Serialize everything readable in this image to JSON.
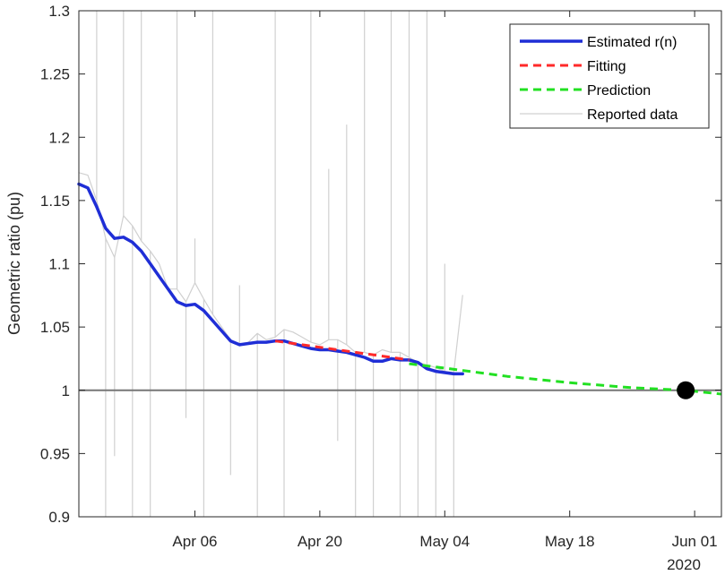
{
  "chart_data": {
    "type": "line",
    "title": "",
    "xlabel": "",
    "ylabel": "Geometric ratio (pu)",
    "year_label": "2020",
    "xlim": [
      "2020-03-24",
      "2020-06-04"
    ],
    "ylim": [
      0.9,
      1.3
    ],
    "x_ticks": [
      {
        "date": "2020-04-06",
        "label": "Apr 06"
      },
      {
        "date": "2020-04-20",
        "label": "Apr 20"
      },
      {
        "date": "2020-05-04",
        "label": "May 04"
      },
      {
        "date": "2020-05-18",
        "label": "May 18"
      },
      {
        "date": "2020-06-01",
        "label": "Jun 01"
      }
    ],
    "y_ticks": [
      {
        "value": 0.9,
        "label": "0.9"
      },
      {
        "value": 0.95,
        "label": "0.95"
      },
      {
        "value": 1.0,
        "label": "1"
      },
      {
        "value": 1.05,
        "label": "1.05"
      },
      {
        "value": 1.1,
        "label": "1.1"
      },
      {
        "value": 1.15,
        "label": "1.15"
      },
      {
        "value": 1.2,
        "label": "1.2"
      },
      {
        "value": 1.25,
        "label": "1.25"
      },
      {
        "value": 1.3,
        "label": "1.3"
      }
    ],
    "grid": false,
    "legend_position": "top-right",
    "reference_line": {
      "y": 1.0,
      "color": "#777777"
    },
    "milestone_point": {
      "x": "2020-05-31",
      "y": 1.0,
      "color": "#000000"
    },
    "series": [
      {
        "name": "Reported data",
        "style": "solid",
        "color": "#d0d0d0",
        "points": [
          [
            "2020-03-24",
            1.172
          ],
          [
            "2020-03-25",
            1.17
          ],
          [
            "2020-03-26",
            1.15
          ],
          [
            "2020-03-27",
            1.12
          ],
          [
            "2020-03-28",
            1.105
          ],
          [
            "2020-03-29",
            1.138
          ],
          [
            "2020-03-30",
            1.13
          ],
          [
            "2020-03-31",
            1.118
          ],
          [
            "2020-04-01",
            1.11
          ],
          [
            "2020-04-02",
            1.1
          ],
          [
            "2020-04-03",
            1.08
          ],
          [
            "2020-04-04",
            1.08
          ],
          [
            "2020-04-05",
            1.07
          ],
          [
            "2020-04-06",
            1.085
          ],
          [
            "2020-04-07",
            1.072
          ],
          [
            "2020-04-08",
            1.06
          ],
          [
            "2020-04-09",
            1.05
          ],
          [
            "2020-04-10",
            1.04
          ],
          [
            "2020-04-11",
            1.035
          ],
          [
            "2020-04-12",
            1.038
          ],
          [
            "2020-04-13",
            1.045
          ],
          [
            "2020-04-14",
            1.04
          ],
          [
            "2020-04-15",
            1.042
          ],
          [
            "2020-04-16",
            1.048
          ],
          [
            "2020-04-17",
            1.046
          ],
          [
            "2020-04-18",
            1.042
          ],
          [
            "2020-04-19",
            1.038
          ],
          [
            "2020-04-20",
            1.036
          ],
          [
            "2020-04-21",
            1.04
          ],
          [
            "2020-04-22",
            1.04
          ],
          [
            "2020-04-23",
            1.036
          ],
          [
            "2020-04-24",
            1.03
          ],
          [
            "2020-04-25",
            1.03
          ],
          [
            "2020-04-26",
            1.028
          ],
          [
            "2020-04-27",
            1.032
          ],
          [
            "2020-04-28",
            1.03
          ],
          [
            "2020-04-29",
            1.03
          ],
          [
            "2020-04-30",
            1.026
          ],
          [
            "2020-05-01",
            1.022
          ],
          [
            "2020-05-02",
            1.02
          ],
          [
            "2020-05-03",
            1.018
          ],
          [
            "2020-05-04",
            1.015
          ],
          [
            "2020-05-05",
            1.014
          ],
          [
            "2020-05-06",
            1.075
          ]
        ],
        "spikes": [
          [
            "2020-03-26",
            1.3
          ],
          [
            "2020-03-27",
            0.9
          ],
          [
            "2020-03-28",
            0.948
          ],
          [
            "2020-03-29",
            1.3
          ],
          [
            "2020-03-30",
            0.9
          ],
          [
            "2020-03-31",
            1.3
          ],
          [
            "2020-04-01",
            0.9
          ],
          [
            "2020-04-04",
            1.3
          ],
          [
            "2020-04-05",
            0.978
          ],
          [
            "2020-04-06",
            1.12
          ],
          [
            "2020-04-07",
            0.9
          ],
          [
            "2020-04-08",
            1.3
          ],
          [
            "2020-04-10",
            0.933
          ],
          [
            "2020-04-11",
            1.083
          ],
          [
            "2020-04-13",
            0.9
          ],
          [
            "2020-04-15",
            1.3
          ],
          [
            "2020-04-16",
            0.9
          ],
          [
            "2020-04-19",
            1.3
          ],
          [
            "2020-04-21",
            1.175
          ],
          [
            "2020-04-22",
            0.96
          ],
          [
            "2020-04-23",
            1.21
          ],
          [
            "2020-04-24",
            0.9
          ],
          [
            "2020-04-25",
            1.3
          ],
          [
            "2020-04-26",
            0.9
          ],
          [
            "2020-04-28",
            1.3
          ],
          [
            "2020-04-29",
            0.9
          ],
          [
            "2020-04-30",
            1.3
          ],
          [
            "2020-05-01",
            0.9
          ],
          [
            "2020-05-02",
            1.3
          ],
          [
            "2020-05-03",
            0.9
          ],
          [
            "2020-05-04",
            1.1
          ],
          [
            "2020-05-05",
            0.9
          ],
          [
            "2020-05-06",
            1.075
          ]
        ]
      },
      {
        "name": "Estimated r(n)",
        "style": "solid",
        "color": "#1f2ed6",
        "points": [
          [
            "2020-03-24",
            1.163
          ],
          [
            "2020-03-25",
            1.16
          ],
          [
            "2020-03-26",
            1.145
          ],
          [
            "2020-03-27",
            1.128
          ],
          [
            "2020-03-28",
            1.12
          ],
          [
            "2020-03-29",
            1.121
          ],
          [
            "2020-03-30",
            1.117
          ],
          [
            "2020-03-31",
            1.11
          ],
          [
            "2020-04-01",
            1.1
          ],
          [
            "2020-04-02",
            1.09
          ],
          [
            "2020-04-03",
            1.08
          ],
          [
            "2020-04-04",
            1.07
          ],
          [
            "2020-04-05",
            1.067
          ],
          [
            "2020-04-06",
            1.068
          ],
          [
            "2020-04-07",
            1.063
          ],
          [
            "2020-04-08",
            1.055
          ],
          [
            "2020-04-09",
            1.047
          ],
          [
            "2020-04-10",
            1.039
          ],
          [
            "2020-04-11",
            1.036
          ],
          [
            "2020-04-12",
            1.037
          ],
          [
            "2020-04-13",
            1.038
          ],
          [
            "2020-04-14",
            1.038
          ],
          [
            "2020-04-15",
            1.039
          ],
          [
            "2020-04-16",
            1.039
          ],
          [
            "2020-04-17",
            1.037
          ],
          [
            "2020-04-18",
            1.035
          ],
          [
            "2020-04-19",
            1.033
          ],
          [
            "2020-04-20",
            1.032
          ],
          [
            "2020-04-21",
            1.032
          ],
          [
            "2020-04-22",
            1.031
          ],
          [
            "2020-04-23",
            1.03
          ],
          [
            "2020-04-24",
            1.028
          ],
          [
            "2020-04-25",
            1.026
          ],
          [
            "2020-04-26",
            1.023
          ],
          [
            "2020-04-27",
            1.023
          ],
          [
            "2020-04-28",
            1.025
          ],
          [
            "2020-04-29",
            1.024
          ],
          [
            "2020-04-30",
            1.024
          ],
          [
            "2020-05-01",
            1.022
          ],
          [
            "2020-05-02",
            1.017
          ],
          [
            "2020-05-03",
            1.015
          ],
          [
            "2020-05-04",
            1.014
          ],
          [
            "2020-05-05",
            1.013
          ],
          [
            "2020-05-06",
            1.013
          ]
        ]
      },
      {
        "name": "Fitting",
        "style": "dashed",
        "color": "#ff2a2a",
        "points": [
          [
            "2020-04-15",
            1.039
          ],
          [
            "2020-04-18",
            1.036
          ],
          [
            "2020-04-21",
            1.033
          ],
          [
            "2020-04-24",
            1.03
          ],
          [
            "2020-04-27",
            1.027
          ],
          [
            "2020-04-30",
            1.024
          ]
        ]
      },
      {
        "name": "Prediction",
        "style": "dashed",
        "color": "#22e022",
        "points": [
          [
            "2020-04-30",
            1.021
          ],
          [
            "2020-05-04",
            1.0175
          ],
          [
            "2020-05-11",
            1.011
          ],
          [
            "2020-05-18",
            1.006
          ],
          [
            "2020-05-25",
            1.002
          ],
          [
            "2020-05-31",
            1.0
          ],
          [
            "2020-06-04",
            0.997
          ]
        ]
      }
    ]
  }
}
